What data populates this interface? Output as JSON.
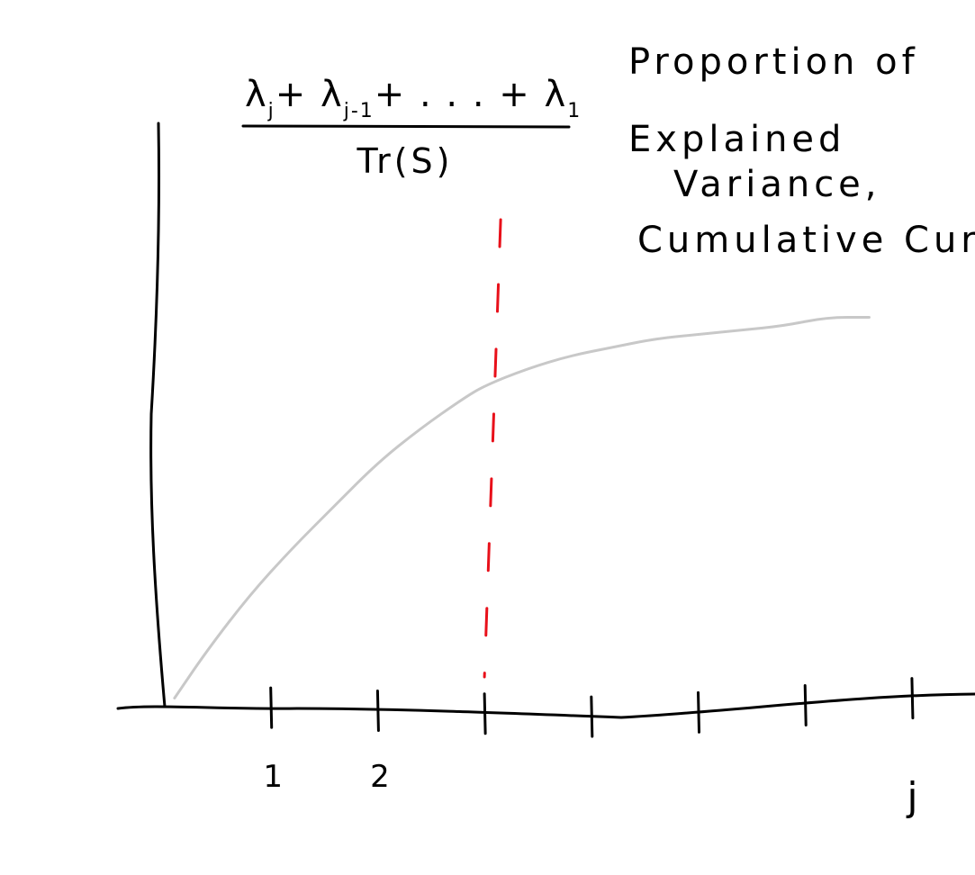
{
  "chart_data": {
    "type": "line",
    "title_lines": [
      "Proportion of",
      "Explained",
      "Variance,",
      "Cumulative Curve"
    ],
    "ylabel": {
      "numerator": [
        "λ",
        "j",
        "+ λ",
        "j-1",
        "+ . . . + λ",
        "1"
      ],
      "denominator": "Tr(S)"
    },
    "xlabel": "j",
    "x_tick_labels": [
      {
        "position": 1,
        "label": "1"
      },
      {
        "position": 2,
        "label": "2"
      }
    ],
    "x_ticks": [
      1,
      2,
      3,
      4,
      5,
      6,
      7
    ],
    "xlim": [
      0,
      7.3
    ],
    "ylim": [
      0,
      1
    ],
    "series": [
      {
        "x": [
          0.1,
          0.4,
          0.8,
          1.2,
          1.6,
          2.0,
          2.4,
          2.8,
          3.0,
          3.4,
          3.8,
          4.2,
          4.6,
          5.0,
          5.4,
          5.8,
          6.2,
          6.6
        ],
        "values": [
          0.02,
          0.13,
          0.26,
          0.37,
          0.47,
          0.57,
          0.65,
          0.72,
          0.75,
          0.79,
          0.82,
          0.84,
          0.86,
          0.87,
          0.88,
          0.89,
          0.91,
          0.91
        ],
        "color": "#c8c8c8"
      }
    ],
    "vertical_marker": {
      "x": 3.0,
      "color": "#e8101a",
      "style": "dashed"
    },
    "grid": false,
    "legend": "none"
  }
}
